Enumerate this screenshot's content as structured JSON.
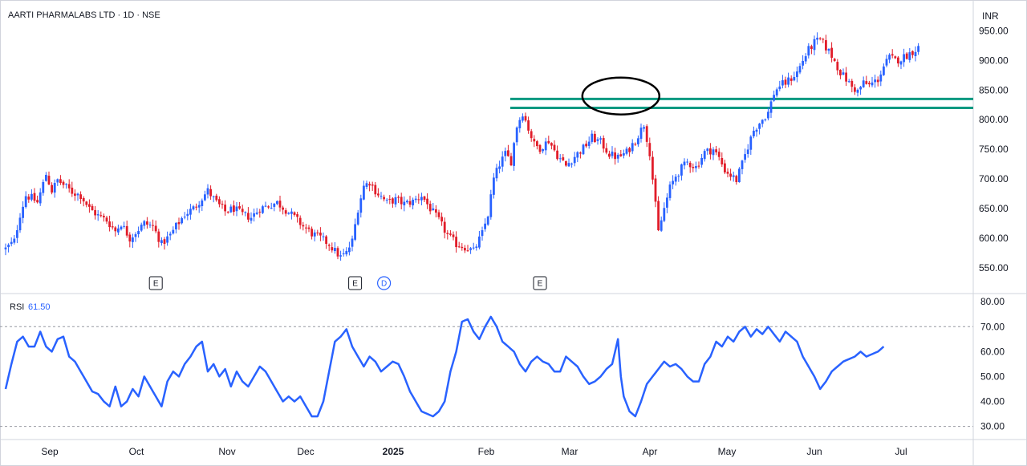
{
  "header": {
    "symbol_line": "AARTI PHARMALABS LTD · 1D · NSE",
    "currency": "INR"
  },
  "rsi_header": {
    "label": "RSI",
    "value": "61.50"
  },
  "colors": {
    "up": "#2962ff",
    "down": "#e11d2a",
    "level": "#089981",
    "rsi": "#2962ff",
    "annotation": "#000000"
  },
  "chart_data": {
    "type": "candlestick",
    "price_axis": {
      "ticks": [
        "550.00",
        "600.00",
        "650.00",
        "700.00",
        "750.00",
        "800.00",
        "850.00",
        "900.00",
        "950.00"
      ],
      "range": [
        520,
        975
      ]
    },
    "rsi_axis": {
      "ticks": [
        "30.00",
        "40.00",
        "50.00",
        "60.00",
        "70.00",
        "80.00"
      ],
      "range": [
        26,
        82
      ],
      "bands": [
        70,
        30
      ]
    },
    "x_axis": {
      "labels": [
        "Sep",
        "Oct",
        "Nov",
        "Dec",
        "2025",
        "Feb",
        "Mar",
        "Apr",
        "May",
        "Jun",
        "Jul"
      ]
    },
    "horizontal_levels": [
      835,
      820
    ],
    "highlight_ellipse": {
      "center_index": 213,
      "center_price": 840
    },
    "events": [
      {
        "label": "E",
        "index": 52
      },
      {
        "label": "E",
        "index": 121
      },
      {
        "label": "D",
        "index": 131
      },
      {
        "label": "E",
        "index": 185
      }
    ],
    "price_anchors": [
      [
        0,
        582
      ],
      [
        3,
        595
      ],
      [
        5,
        640
      ],
      [
        7,
        672
      ],
      [
        9,
        668
      ],
      [
        11,
        660
      ],
      [
        14,
        708
      ],
      [
        16,
        680
      ],
      [
        18,
        698
      ],
      [
        20,
        690
      ],
      [
        23,
        678
      ],
      [
        26,
        672
      ],
      [
        29,
        650
      ],
      [
        32,
        638
      ],
      [
        35,
        630
      ],
      [
        38,
        612
      ],
      [
        40,
        625
      ],
      [
        43,
        600
      ],
      [
        46,
        615
      ],
      [
        48,
        625
      ],
      [
        51,
        620
      ],
      [
        54,
        590
      ],
      [
        57,
        605
      ],
      [
        59,
        620
      ],
      [
        62,
        640
      ],
      [
        65,
        650
      ],
      [
        68,
        668
      ],
      [
        70,
        680
      ],
      [
        73,
        660
      ],
      [
        76,
        645
      ],
      [
        79,
        650
      ],
      [
        82,
        640
      ],
      [
        85,
        635
      ],
      [
        88,
        650
      ],
      [
        91,
        655
      ],
      [
        94,
        660
      ],
      [
        97,
        648
      ],
      [
        100,
        635
      ],
      [
        103,
        620
      ],
      [
        106,
        608
      ],
      [
        109,
        600
      ],
      [
        112,
        590
      ],
      [
        114,
        578
      ],
      [
        116,
        568
      ],
      [
        118,
        575
      ],
      [
        120,
        595
      ],
      [
        122,
        650
      ],
      [
        124,
        688
      ],
      [
        126,
        695
      ],
      [
        128,
        680
      ],
      [
        130,
        670
      ],
      [
        132,
        660
      ],
      [
        135,
        665
      ],
      [
        138,
        658
      ],
      [
        141,
        662
      ],
      [
        144,
        672
      ],
      [
        147,
        650
      ],
      [
        150,
        630
      ],
      [
        153,
        605
      ],
      [
        156,
        590
      ],
      [
        159,
        585
      ],
      [
        162,
        578
      ],
      [
        165,
        608
      ],
      [
        167,
        640
      ],
      [
        169,
        700
      ],
      [
        171,
        725
      ],
      [
        173,
        742
      ],
      [
        175,
        730
      ],
      [
        177,
        790
      ],
      [
        179,
        812
      ],
      [
        181,
        785
      ],
      [
        183,
        758
      ],
      [
        185,
        752
      ],
      [
        188,
        765
      ],
      [
        191,
        740
      ],
      [
        194,
        722
      ],
      [
        197,
        738
      ],
      [
        200,
        752
      ],
      [
        203,
        770
      ],
      [
        206,
        762
      ],
      [
        209,
        742
      ],
      [
        212,
        736
      ],
      [
        215,
        745
      ],
      [
        218,
        765
      ],
      [
        221,
        792
      ],
      [
        223,
        745
      ],
      [
        224,
        700
      ],
      [
        226,
        610
      ],
      [
        228,
        650
      ],
      [
        230,
        685
      ],
      [
        232,
        705
      ],
      [
        234,
        718
      ],
      [
        236,
        728
      ],
      [
        239,
        720
      ],
      [
        242,
        745
      ],
      [
        245,
        750
      ],
      [
        247,
        735
      ],
      [
        249,
        715
      ],
      [
        251,
        706
      ],
      [
        253,
        698
      ],
      [
        255,
        725
      ],
      [
        257,
        755
      ],
      [
        259,
        782
      ],
      [
        261,
        795
      ],
      [
        264,
        812
      ],
      [
        266,
        845
      ],
      [
        268,
        858
      ],
      [
        270,
        862
      ],
      [
        272,
        870
      ],
      [
        274,
        880
      ],
      [
        276,
        900
      ],
      [
        278,
        918
      ],
      [
        280,
        930
      ],
      [
        282,
        935
      ],
      [
        284,
        922
      ],
      [
        286,
        908
      ],
      [
        289,
        880
      ],
      [
        291,
        868
      ],
      [
        293,
        855
      ],
      [
        295,
        848
      ],
      [
        297,
        862
      ],
      [
        299,
        858
      ],
      [
        302,
        868
      ],
      [
        304,
        890
      ],
      [
        306,
        905
      ],
      [
        308,
        900
      ],
      [
        310,
        903
      ],
      [
        313,
        912
      ],
      [
        316,
        922
      ]
    ],
    "rsi_anchors": [
      [
        0,
        45
      ],
      [
        2,
        55
      ],
      [
        4,
        64
      ],
      [
        6,
        66
      ],
      [
        8,
        62
      ],
      [
        10,
        62
      ],
      [
        12,
        68
      ],
      [
        14,
        62
      ],
      [
        16,
        60
      ],
      [
        18,
        65
      ],
      [
        20,
        66
      ],
      [
        22,
        58
      ],
      [
        24,
        56
      ],
      [
        26,
        52
      ],
      [
        28,
        48
      ],
      [
        30,
        44
      ],
      [
        32,
        43
      ],
      [
        34,
        40
      ],
      [
        36,
        38
      ],
      [
        38,
        46
      ],
      [
        40,
        38
      ],
      [
        42,
        40
      ],
      [
        44,
        45
      ],
      [
        46,
        42
      ],
      [
        48,
        50
      ],
      [
        50,
        46
      ],
      [
        52,
        42
      ],
      [
        54,
        38
      ],
      [
        56,
        48
      ],
      [
        58,
        52
      ],
      [
        60,
        50
      ],
      [
        62,
        55
      ],
      [
        64,
        58
      ],
      [
        66,
        62
      ],
      [
        68,
        64
      ],
      [
        70,
        52
      ],
      [
        72,
        55
      ],
      [
        74,
        50
      ],
      [
        76,
        53
      ],
      [
        78,
        46
      ],
      [
        80,
        52
      ],
      [
        82,
        48
      ],
      [
        84,
        46
      ],
      [
        86,
        50
      ],
      [
        88,
        54
      ],
      [
        90,
        52
      ],
      [
        92,
        48
      ],
      [
        94,
        44
      ],
      [
        96,
        40
      ],
      [
        98,
        42
      ],
      [
        100,
        40
      ],
      [
        102,
        42
      ],
      [
        104,
        38
      ],
      [
        106,
        34
      ],
      [
        108,
        34
      ],
      [
        110,
        40
      ],
      [
        112,
        52
      ],
      [
        114,
        64
      ],
      [
        116,
        66
      ],
      [
        118,
        69
      ],
      [
        120,
        62
      ],
      [
        122,
        58
      ],
      [
        124,
        54
      ],
      [
        126,
        58
      ],
      [
        128,
        56
      ],
      [
        130,
        52
      ],
      [
        132,
        54
      ],
      [
        134,
        56
      ],
      [
        136,
        55
      ],
      [
        138,
        50
      ],
      [
        140,
        44
      ],
      [
        142,
        40
      ],
      [
        144,
        36
      ],
      [
        146,
        35
      ],
      [
        148,
        34
      ],
      [
        150,
        36
      ],
      [
        152,
        40
      ],
      [
        154,
        52
      ],
      [
        156,
        60
      ],
      [
        158,
        72
      ],
      [
        160,
        73
      ],
      [
        162,
        68
      ],
      [
        164,
        65
      ],
      [
        166,
        70
      ],
      [
        168,
        74
      ],
      [
        170,
        70
      ],
      [
        172,
        64
      ],
      [
        174,
        62
      ],
      [
        176,
        60
      ],
      [
        178,
        55
      ],
      [
        180,
        52
      ],
      [
        182,
        56
      ],
      [
        184,
        58
      ],
      [
        186,
        56
      ],
      [
        188,
        55
      ],
      [
        190,
        52
      ],
      [
        192,
        52
      ],
      [
        194,
        58
      ],
      [
        196,
        56
      ],
      [
        198,
        54
      ],
      [
        200,
        50
      ],
      [
        202,
        47
      ],
      [
        204,
        48
      ],
      [
        206,
        50
      ],
      [
        208,
        53
      ],
      [
        210,
        55
      ],
      [
        212,
        65
      ],
      [
        213,
        50
      ],
      [
        214,
        42
      ],
      [
        216,
        36
      ],
      [
        218,
        34
      ],
      [
        220,
        40
      ],
      [
        222,
        47
      ],
      [
        224,
        50
      ],
      [
        226,
        53
      ],
      [
        228,
        56
      ],
      [
        230,
        54
      ],
      [
        232,
        55
      ],
      [
        234,
        53
      ],
      [
        236,
        50
      ],
      [
        238,
        48
      ],
      [
        240,
        48
      ],
      [
        242,
        55
      ],
      [
        244,
        58
      ],
      [
        246,
        64
      ],
      [
        248,
        62
      ],
      [
        250,
        66
      ],
      [
        252,
        64
      ],
      [
        254,
        68
      ],
      [
        256,
        70
      ],
      [
        258,
        66
      ],
      [
        260,
        69
      ],
      [
        262,
        67
      ],
      [
        264,
        70
      ],
      [
        266,
        67
      ],
      [
        268,
        64
      ],
      [
        270,
        68
      ],
      [
        272,
        66
      ],
      [
        274,
        64
      ],
      [
        276,
        58
      ],
      [
        278,
        54
      ],
      [
        280,
        50
      ],
      [
        282,
        45
      ],
      [
        284,
        48
      ],
      [
        286,
        52
      ],
      [
        288,
        54
      ],
      [
        290,
        56
      ],
      [
        292,
        57
      ],
      [
        294,
        58
      ],
      [
        296,
        60
      ],
      [
        298,
        58
      ],
      [
        300,
        59
      ],
      [
        302,
        60
      ],
      [
        304,
        62
      ]
    ]
  }
}
